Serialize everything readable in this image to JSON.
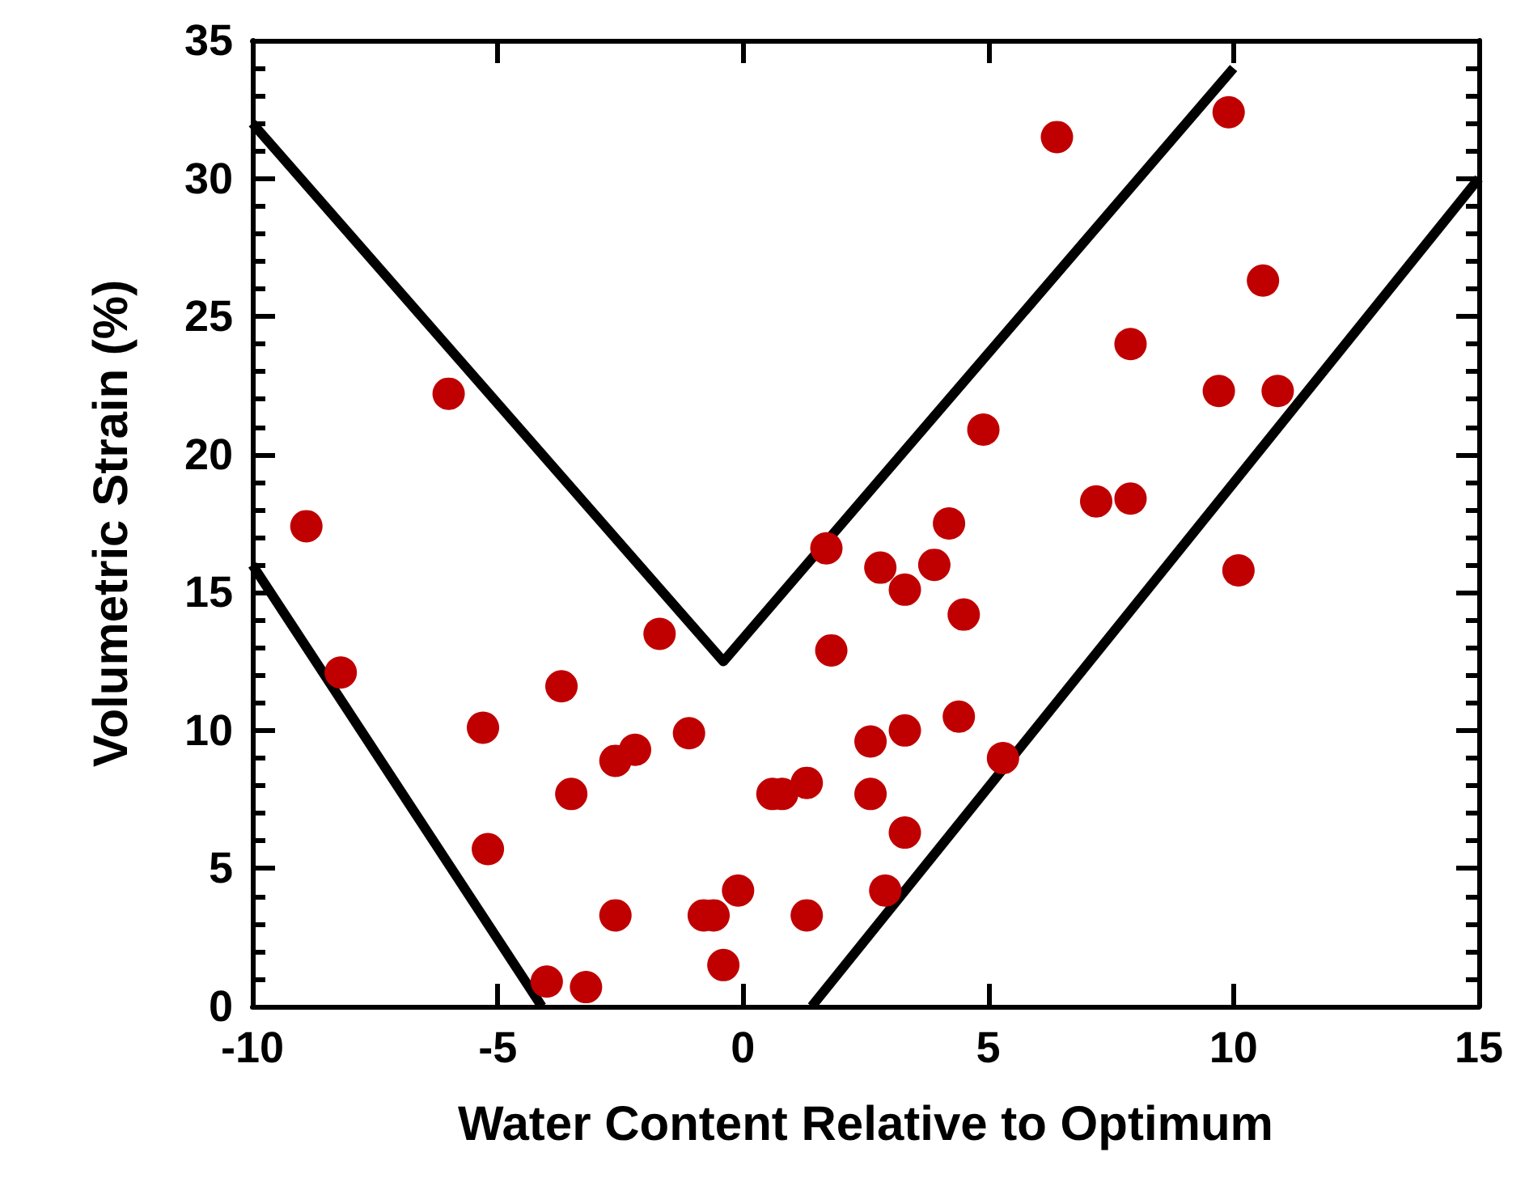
{
  "chart_data": {
    "type": "scatter",
    "xlabel": "Water Content Relative to Optimum",
    "ylabel": "Volumetric Strain (%)",
    "xlim": [
      -10,
      15
    ],
    "xticks": [
      -10,
      -5,
      0,
      5,
      10,
      15
    ],
    "ylim": [
      0,
      35
    ],
    "yticks": [
      0,
      5,
      10,
      15,
      20,
      25,
      30,
      35
    ],
    "grid": false,
    "series": [
      {
        "marker": "circle",
        "color": "#c00000",
        "x": [
          -8.9,
          -8.2,
          -6.0,
          -5.3,
          -5.2,
          -4.0,
          -3.7,
          -3.5,
          -3.2,
          -2.6,
          -2.6,
          -2.2,
          -1.7,
          -1.1,
          -0.8,
          -0.6,
          -0.4,
          -0.1,
          0.6,
          0.8,
          1.3,
          1.3,
          1.7,
          1.8,
          2.6,
          2.6,
          2.8,
          2.9,
          3.3,
          3.3,
          3.3,
          3.9,
          4.2,
          4.4,
          4.5,
          4.9,
          5.3,
          6.4,
          7.2,
          7.9,
          7.9,
          9.7,
          9.9,
          10.1,
          10.6,
          10.9
        ],
        "values": [
          17.4,
          12.1,
          22.2,
          10.1,
          5.7,
          0.9,
          11.6,
          7.7,
          0.7,
          3.3,
          8.9,
          9.3,
          13.5,
          9.9,
          3.3,
          3.3,
          1.5,
          4.2,
          7.7,
          7.7,
          8.1,
          3.3,
          16.6,
          12.9,
          9.6,
          7.7,
          15.9,
          4.2,
          10.0,
          6.3,
          15.1,
          16.0,
          17.5,
          10.5,
          14.2,
          20.9,
          9.0,
          31.5,
          18.3,
          24.0,
          18.4,
          22.3,
          32.4,
          15.8,
          26.3,
          22.3
        ]
      },
      {
        "type": "line",
        "marker": "none",
        "line_style": "solid",
        "color": "#000000",
        "x": [
          -10,
          -0.4,
          10
        ],
        "values": [
          32,
          12.5,
          34
        ]
      },
      {
        "type": "line",
        "marker": "none",
        "line_style": "solid",
        "color": "#000000",
        "x": [
          -10,
          -4.1
        ],
        "values": [
          16,
          0
        ]
      },
      {
        "type": "line",
        "marker": "none",
        "line_style": "solid",
        "color": "#000000",
        "x": [
          1.4,
          15
        ],
        "values": [
          0,
          30
        ]
      }
    ]
  }
}
